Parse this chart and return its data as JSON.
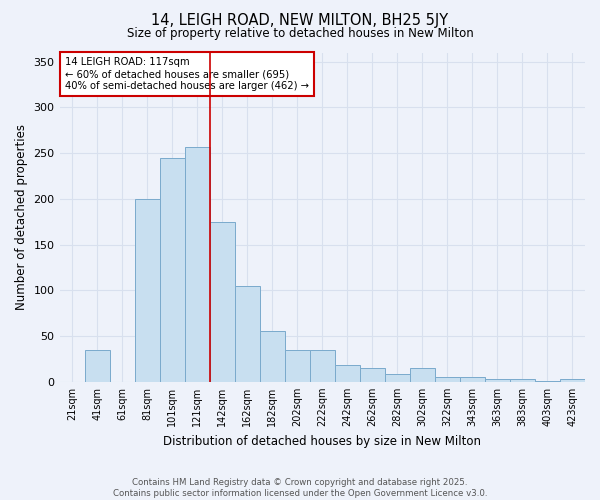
{
  "title": "14, LEIGH ROAD, NEW MILTON, BH25 5JY",
  "subtitle": "Size of property relative to detached houses in New Milton",
  "xlabel": "Distribution of detached houses by size in New Milton",
  "ylabel": "Number of detached properties",
  "bar_color": "#c8dff0",
  "bar_edge_color": "#7aaacc",
  "background_color": "#eef2fa",
  "grid_color": "#d8e0ee",
  "categories": [
    "21sqm",
    "41sqm",
    "61sqm",
    "81sqm",
    "101sqm",
    "121sqm",
    "142sqm",
    "162sqm",
    "182sqm",
    "202sqm",
    "222sqm",
    "242sqm",
    "262sqm",
    "282sqm",
    "302sqm",
    "322sqm",
    "343sqm",
    "363sqm",
    "383sqm",
    "403sqm",
    "423sqm"
  ],
  "values": [
    0,
    35,
    0,
    200,
    245,
    257,
    175,
    105,
    55,
    35,
    35,
    18,
    15,
    8,
    15,
    5,
    5,
    3,
    3,
    1,
    3
  ],
  "ylim": [
    0,
    360
  ],
  "yticks": [
    0,
    50,
    100,
    150,
    200,
    250,
    300,
    350
  ],
  "red_line_index": 5,
  "red_line_color": "#cc0000",
  "annotation_title": "14 LEIGH ROAD: 117sqm",
  "annotation_line1": "← 60% of detached houses are smaller (695)",
  "annotation_line2": "40% of semi-detached houses are larger (462) →",
  "annotation_box_color": "#ffffff",
  "annotation_box_edge_color": "#cc0000",
  "footer_line1": "Contains HM Land Registry data © Crown copyright and database right 2025.",
  "footer_line2": "Contains public sector information licensed under the Open Government Licence v3.0."
}
